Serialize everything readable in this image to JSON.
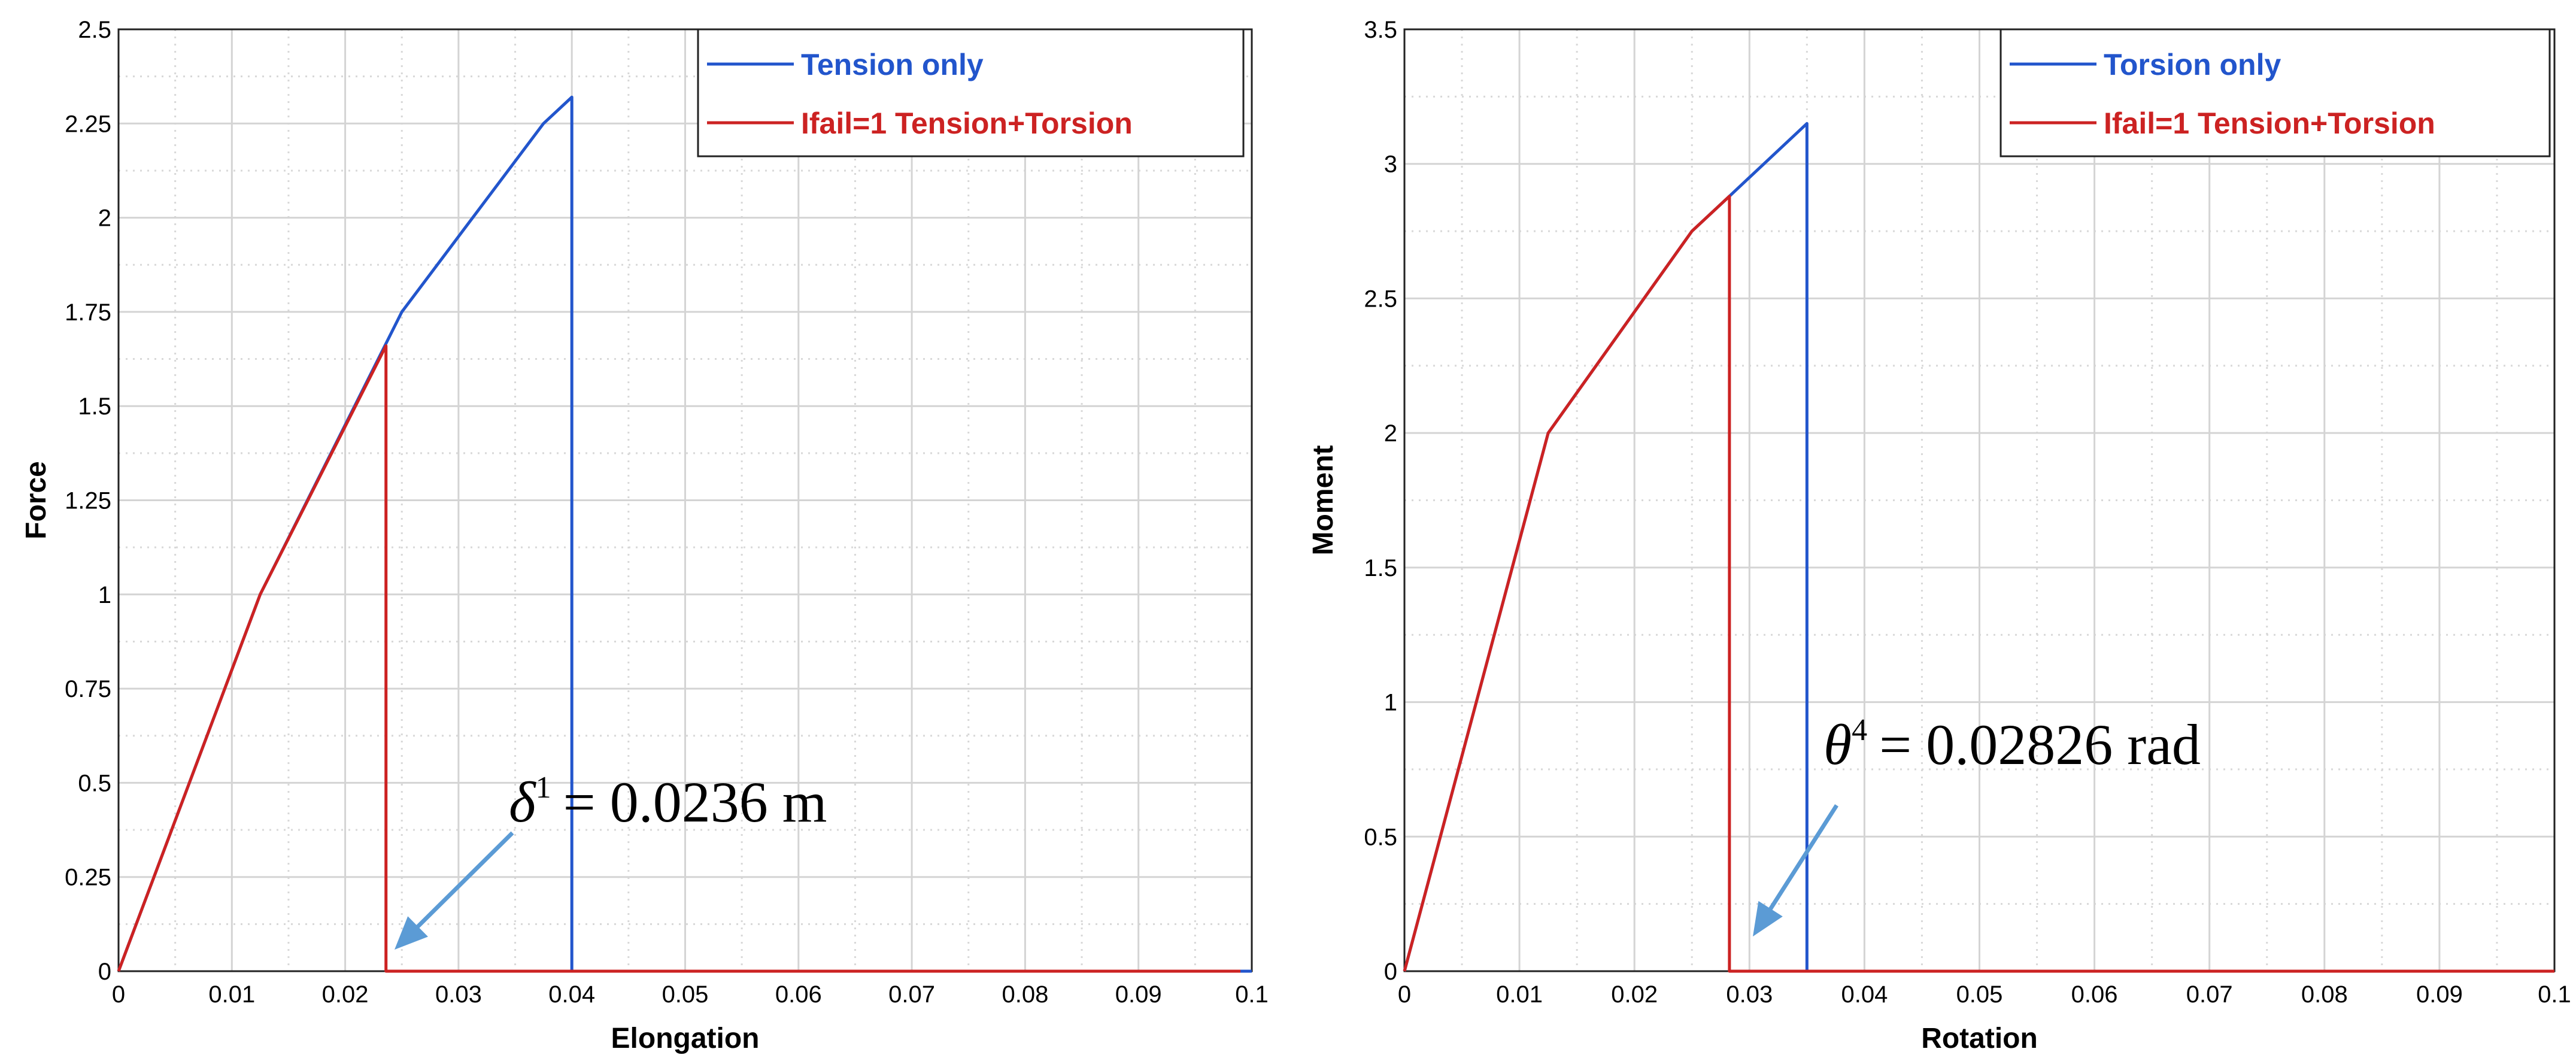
{
  "chart_data": [
    {
      "type": "line",
      "xlabel": "Elongation",
      "ylabel": "Force",
      "xlim": [
        0,
        0.1
      ],
      "ylim": [
        0,
        2.5
      ],
      "xticks": [
        "0",
        "0.01",
        "0.02",
        "0.03",
        "0.04",
        "0.05",
        "0.06",
        "0.07",
        "0.08",
        "0.09",
        "0.1"
      ],
      "yticks": [
        "0",
        "0.25",
        "0.5",
        "0.75",
        "1",
        "1.25",
        "1.5",
        "1.75",
        "2",
        "2.25",
        "2.5"
      ],
      "grid": true,
      "legend_position": "top-right",
      "series": [
        {
          "name": "Tension only",
          "color": "#2255cc",
          "x": [
            0,
            0.0125,
            0.025,
            0.0375,
            0.04,
            0.04,
            0.1
          ],
          "y": [
            0,
            1.0,
            1.75,
            2.25,
            2.32,
            0,
            0
          ]
        },
        {
          "name": "Ifail=1 Tension+Torsion",
          "color": "#cc2222",
          "x": [
            0,
            0.0125,
            0.0236,
            0.0236,
            0.099
          ],
          "y": [
            0,
            1.0,
            1.66,
            0,
            0
          ]
        }
      ],
      "annotation": {
        "symbol": "δ",
        "superscript": "1",
        "text": "= 0.0236 m",
        "arrow_color": "#5b9bd5",
        "points_to": {
          "x": 0.0236,
          "y": 0
        }
      }
    },
    {
      "type": "line",
      "xlabel": "Rotation",
      "ylabel": "Moment",
      "xlim": [
        0,
        0.1
      ],
      "ylim": [
        0,
        3.5
      ],
      "xticks": [
        "0",
        "0.01",
        "0.02",
        "0.03",
        "0.04",
        "0.05",
        "0.06",
        "0.07",
        "0.08",
        "0.09",
        "0.1"
      ],
      "yticks": [
        "0",
        "0.5",
        "1",
        "1.5",
        "2",
        "2.5",
        "3",
        "3.5"
      ],
      "grid": true,
      "legend_position": "top-right",
      "series": [
        {
          "name": "Torsion only",
          "color": "#2255cc",
          "x": [
            0,
            0.0125,
            0.025,
            0.02826,
            0.035,
            0.035,
            0.1
          ],
          "y": [
            0,
            2.0,
            2.75,
            2.88,
            3.15,
            0,
            0
          ]
        },
        {
          "name": "Ifail=1 Tension+Torsion",
          "color": "#cc2222",
          "x": [
            0,
            0.0125,
            0.025,
            0.02826,
            0.02826,
            0.1
          ],
          "y": [
            0,
            2.0,
            2.75,
            2.88,
            0,
            0
          ]
        }
      ],
      "annotation": {
        "symbol": "θ",
        "superscript": "4",
        "text": "= 0.02826 rad",
        "arrow_color": "#5b9bd5",
        "points_to": {
          "x": 0.03,
          "y": 0.05
        }
      }
    }
  ]
}
